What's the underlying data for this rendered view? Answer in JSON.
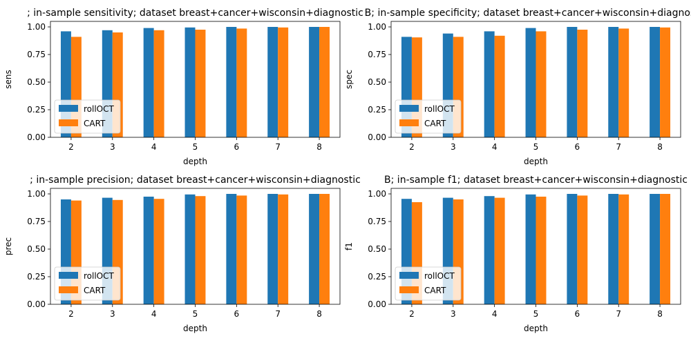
{
  "chart_data": [
    {
      "type": "bar",
      "title": "; in-sample sensitivity; dataset breast+cancer+wisconsin+diagnostic",
      "xlabel": "depth",
      "ylabel": "sens",
      "categories": [
        "2",
        "3",
        "4",
        "5",
        "6",
        "7",
        "8"
      ],
      "series": [
        {
          "name": "rollOCT",
          "color": "#1f77b4",
          "values": [
            0.96,
            0.97,
            0.99,
            0.995,
            1.0,
            1.0,
            1.0
          ]
        },
        {
          "name": "CART",
          "color": "#ff7f0e",
          "values": [
            0.91,
            0.95,
            0.97,
            0.975,
            0.985,
            0.995,
            1.0
          ]
        }
      ],
      "ylim": [
        0,
        1.05
      ],
      "yticks": [
        "0.00",
        "0.25",
        "0.50",
        "0.75",
        "1.00"
      ],
      "legend": "lower-left",
      "grid": false
    },
    {
      "type": "bar",
      "title": "B; in-sample specificity; dataset breast+cancer+wisconsin+diagnostic",
      "xlabel": "depth",
      "ylabel": "spec",
      "categories": [
        "2",
        "3",
        "4",
        "5",
        "6",
        "7",
        "8"
      ],
      "series": [
        {
          "name": "rollOCT",
          "color": "#1f77b4",
          "values": [
            0.91,
            0.94,
            0.96,
            0.99,
            1.0,
            1.0,
            1.0
          ]
        },
        {
          "name": "CART",
          "color": "#ff7f0e",
          "values": [
            0.905,
            0.91,
            0.92,
            0.96,
            0.975,
            0.985,
            0.995
          ]
        }
      ],
      "ylim": [
        0,
        1.05
      ],
      "yticks": [
        "0.00",
        "0.25",
        "0.50",
        "0.75",
        "1.00"
      ],
      "legend": "lower-left",
      "grid": false
    },
    {
      "type": "bar",
      "title": "; in-sample precision; dataset breast+cancer+wisconsin+diagnostic",
      "xlabel": "depth",
      "ylabel": "prec",
      "categories": [
        "2",
        "3",
        "4",
        "5",
        "6",
        "7",
        "8"
      ],
      "series": [
        {
          "name": "rollOCT",
          "color": "#1f77b4",
          "values": [
            0.95,
            0.965,
            0.975,
            0.995,
            1.0,
            1.0,
            1.0
          ]
        },
        {
          "name": "CART",
          "color": "#ff7f0e",
          "values": [
            0.94,
            0.945,
            0.955,
            0.98,
            0.985,
            0.995,
            1.0
          ]
        }
      ],
      "ylim": [
        0,
        1.05
      ],
      "yticks": [
        "0.00",
        "0.25",
        "0.50",
        "0.75",
        "1.00"
      ],
      "legend": "lower-left",
      "grid": false
    },
    {
      "type": "bar",
      "title": "B; in-sample f1; dataset breast+cancer+wisconsin+diagnostic",
      "xlabel": "depth",
      "ylabel": "f1",
      "categories": [
        "2",
        "3",
        "4",
        "5",
        "6",
        "7",
        "8"
      ],
      "series": [
        {
          "name": "rollOCT",
          "color": "#1f77b4",
          "values": [
            0.955,
            0.965,
            0.98,
            0.995,
            1.0,
            1.0,
            1.0
          ]
        },
        {
          "name": "CART",
          "color": "#ff7f0e",
          "values": [
            0.925,
            0.95,
            0.965,
            0.975,
            0.985,
            0.995,
            1.0
          ]
        }
      ],
      "ylim": [
        0,
        1.05
      ],
      "yticks": [
        "0.00",
        "0.25",
        "0.50",
        "0.75",
        "1.00"
      ],
      "legend": "lower-left",
      "grid": false
    }
  ]
}
